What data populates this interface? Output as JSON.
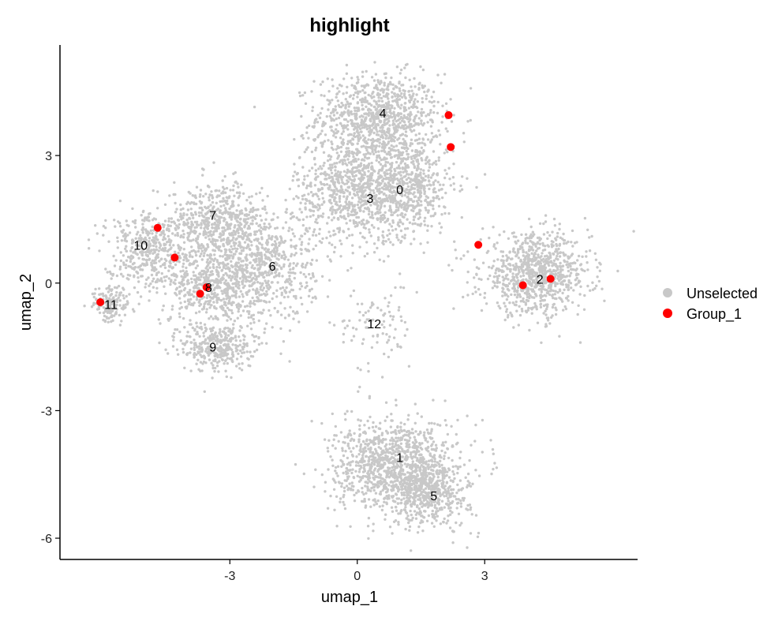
{
  "chart_data": {
    "type": "scatter",
    "title": "highlight",
    "xlabel": "umap_1",
    "ylabel": "umap_2",
    "xlim": [
      -7,
      6.6
    ],
    "ylim": [
      -6.5,
      5.6
    ],
    "x_ticks": [
      -3,
      0,
      3
    ],
    "y_ticks": [
      -6,
      -3,
      0,
      3
    ],
    "grid": false,
    "legend_position": "right",
    "legend": [
      {
        "label": "Unselected",
        "color": "#C8C8C8"
      },
      {
        "label": "Group_1",
        "color": "#FF0000"
      }
    ],
    "cluster_labels": [
      {
        "label": "0",
        "x": 1.0,
        "y": 2.2
      },
      {
        "label": "1",
        "x": 1.0,
        "y": -4.1
      },
      {
        "label": "2",
        "x": 4.3,
        "y": 0.1
      },
      {
        "label": "3",
        "x": 0.3,
        "y": 2.0
      },
      {
        "label": "4",
        "x": 0.6,
        "y": 4.0
      },
      {
        "label": "5",
        "x": 1.8,
        "y": -5.0
      },
      {
        "label": "6",
        "x": -2.0,
        "y": 0.4
      },
      {
        "label": "7",
        "x": -3.4,
        "y": 1.6
      },
      {
        "label": "8",
        "x": -3.5,
        "y": -0.1
      },
      {
        "label": "9",
        "x": -3.4,
        "y": -1.5
      },
      {
        "label": "10",
        "x": -5.1,
        "y": 0.9
      },
      {
        "label": "11",
        "x": -5.8,
        "y": -0.5
      },
      {
        "label": "12",
        "x": 0.4,
        "y": -0.95
      }
    ],
    "series": [
      {
        "name": "Group_1",
        "color": "#FF0000",
        "points": [
          {
            "x": 2.15,
            "y": 3.95
          },
          {
            "x": 2.2,
            "y": 3.2
          },
          {
            "x": 2.85,
            "y": 0.9
          },
          {
            "x": 3.9,
            "y": -0.05
          },
          {
            "x": 4.55,
            "y": 0.1
          },
          {
            "x": -4.7,
            "y": 1.3
          },
          {
            "x": -4.3,
            "y": 0.6
          },
          {
            "x": -3.55,
            "y": -0.1
          },
          {
            "x": -3.7,
            "y": -0.25
          },
          {
            "x": -6.05,
            "y": -0.45
          }
        ]
      },
      {
        "name": "Unselected",
        "color": "#C8C8C8",
        "clusters": [
          {
            "label": "4",
            "cx": 0.5,
            "cy": 3.9,
            "sx": 0.85,
            "sy": 0.6,
            "n": 900
          },
          {
            "label": "0",
            "cx": 1.1,
            "cy": 2.3,
            "sx": 0.7,
            "sy": 0.7,
            "n": 700
          },
          {
            "label": "3",
            "cx": -0.2,
            "cy": 2.2,
            "sx": 0.75,
            "sy": 0.75,
            "n": 700
          },
          {
            "label": "2",
            "cx": 4.2,
            "cy": 0.2,
            "sx": 0.75,
            "sy": 0.55,
            "n": 900
          },
          {
            "label": "6",
            "cx": -2.2,
            "cy": 0.4,
            "sx": 0.7,
            "sy": 0.75,
            "n": 650
          },
          {
            "label": "7",
            "cx": -3.3,
            "cy": 1.4,
            "sx": 0.65,
            "sy": 0.55,
            "n": 550
          },
          {
            "label": "8",
            "cx": -3.4,
            "cy": -0.1,
            "sx": 0.6,
            "sy": 0.5,
            "n": 450
          },
          {
            "label": "9",
            "cx": -3.3,
            "cy": -1.5,
            "sx": 0.5,
            "sy": 0.35,
            "n": 350
          },
          {
            "label": "10",
            "cx": -4.9,
            "cy": 0.8,
            "sx": 0.6,
            "sy": 0.55,
            "n": 450
          },
          {
            "label": "11",
            "cx": -5.8,
            "cy": -0.5,
            "sx": 0.25,
            "sy": 0.25,
            "n": 150
          },
          {
            "label": "12",
            "cx": 0.4,
            "cy": -1.0,
            "sx": 0.5,
            "sy": 0.6,
            "n": 90
          },
          {
            "label": "1",
            "cx": 0.9,
            "cy": -4.3,
            "sx": 0.85,
            "sy": 0.65,
            "n": 1100
          },
          {
            "label": "5",
            "cx": 1.7,
            "cy": -4.9,
            "sx": 0.55,
            "sy": 0.5,
            "n": 450
          }
        ]
      }
    ]
  }
}
